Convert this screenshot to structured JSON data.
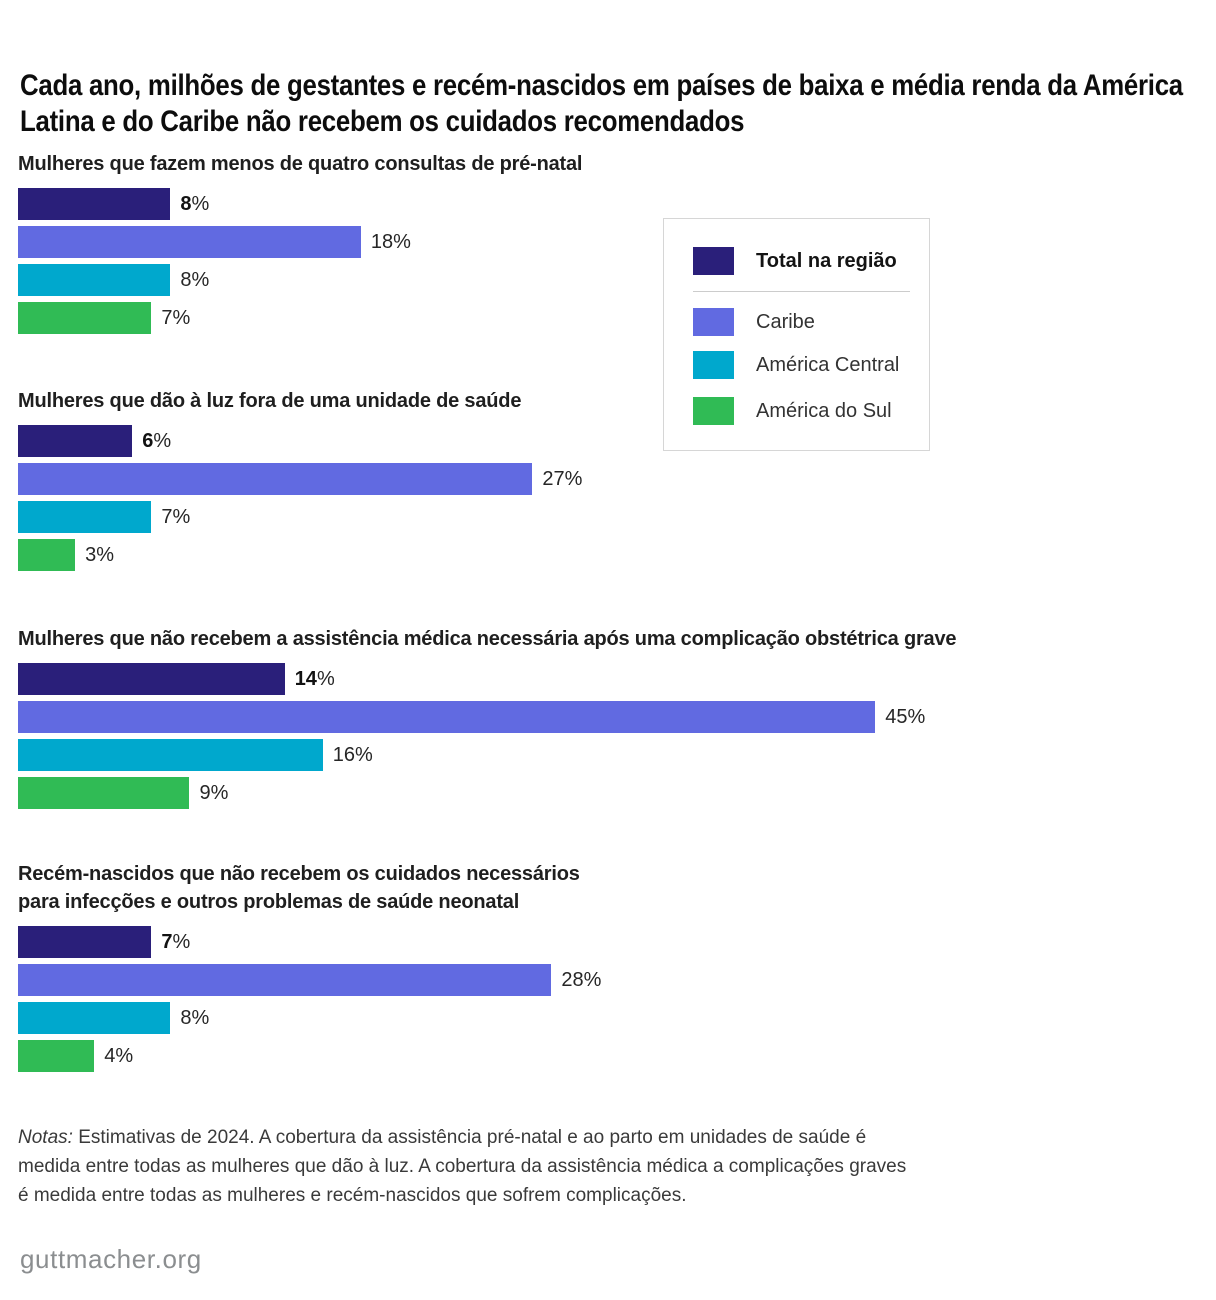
{
  "title": "Cada ano, milhões de gestantes e recém-nascidos em países de baixa e média renda da América\nLatina e do Caribe não recebem os cuidados recomendados",
  "palette": [
    "#2a1f7a",
    "#616ae1",
    "#00a8cd",
    "#30bb55"
  ],
  "legend": {
    "total": {
      "label": "Total na região",
      "color": "#2a1f7a"
    },
    "items": [
      {
        "label": "Caribe",
        "color": "#616ae1"
      },
      {
        "label": "América Central",
        "color": "#00a8cd"
      },
      {
        "label": "América do Sul",
        "color": "#30bb55"
      }
    ]
  },
  "chart_data": [
    {
      "type": "bar",
      "orientation": "horizontal",
      "title": "Mulheres que fazem menos de quatro consultas de pré-natal",
      "categories": [
        "Total na região",
        "Caribe",
        "América Central",
        "América do Sul"
      ],
      "values": [
        8,
        18,
        8,
        7
      ],
      "unit": "%",
      "xlim": [
        0,
        50
      ],
      "grid": false,
      "legend_position": "right"
    },
    {
      "type": "bar",
      "orientation": "horizontal",
      "title": "Mulheres que dão à luz fora de uma unidade de saúde",
      "categories": [
        "Total na região",
        "Caribe",
        "América Central",
        "América do Sul"
      ],
      "values": [
        6,
        27,
        7,
        3
      ],
      "unit": "%",
      "xlim": [
        0,
        50
      ],
      "grid": false
    },
    {
      "type": "bar",
      "orientation": "horizontal",
      "title": "Mulheres que não recebem a assistência médica necessária após uma complicação obstétrica grave",
      "categories": [
        "Total na região",
        "Caribe",
        "América Central",
        "América do Sul"
      ],
      "values": [
        14,
        45,
        16,
        9
      ],
      "unit": "%",
      "xlim": [
        0,
        50
      ],
      "grid": false
    },
    {
      "type": "bar",
      "orientation": "horizontal",
      "title": "Recém-nascidos que não recebem os cuidados necessários\npara infecções e outros problemas de saúde neonatal",
      "categories": [
        "Total na região",
        "Caribe",
        "América Central",
        "América do Sul"
      ],
      "values": [
        7,
        28,
        8,
        4
      ],
      "unit": "%",
      "xlim": [
        0,
        50
      ],
      "grid": false
    }
  ],
  "notes": {
    "label": "Notas:",
    "body": " Estimativas de 2024. A cobertura da assistência pré-natal e ao parto em unidades de saúde é\nmedida entre todas as mulheres que dão à luz. A cobertura da assistência médica a complicações graves\né medida entre todas as mulheres e recém-nascidos que sofrem complicações."
  },
  "footer": "guttmacher.org"
}
